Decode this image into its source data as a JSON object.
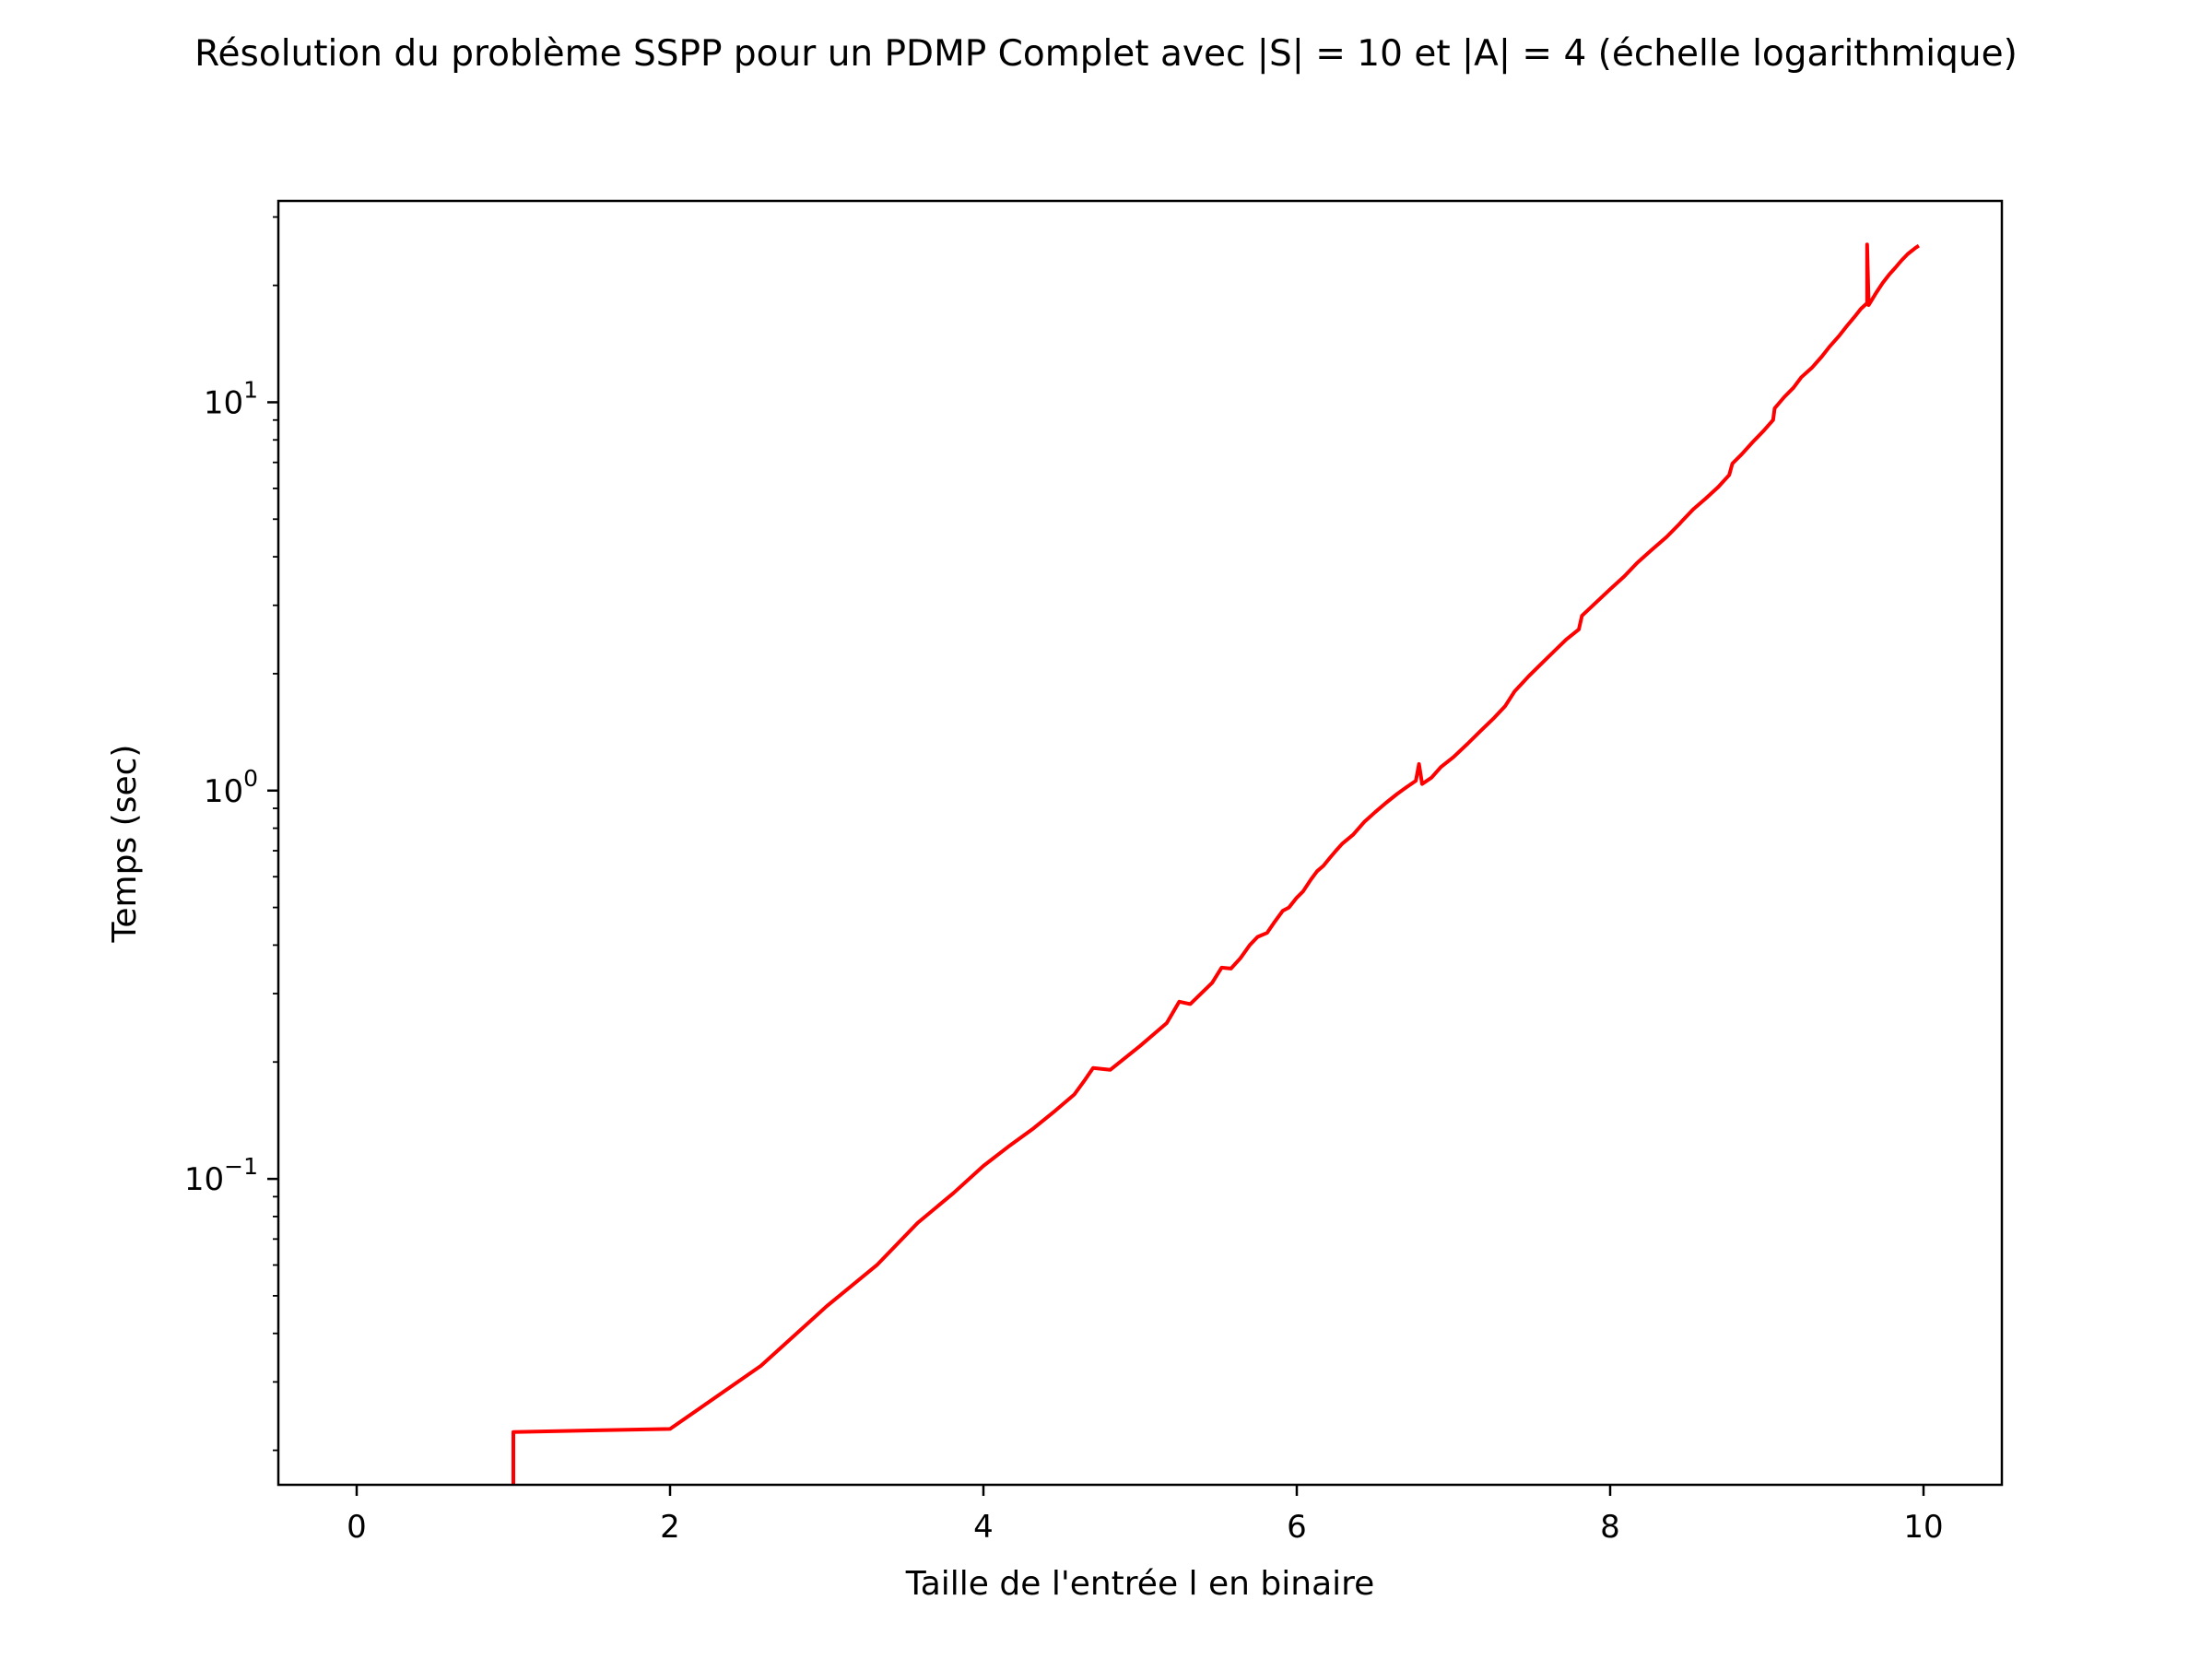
{
  "chart_data": {
    "type": "line",
    "title": "Résolution du problème SSPP pour un PDMP Complet avec |S| = 10 et |A| = 4 (échelle logarithmique)",
    "xlabel": "Taille de l'entrée l en binaire",
    "ylabel": "Temps (sec)",
    "xlim": [
      -0.5,
      10.5
    ],
    "ylim": [
      0.0163,
      33.0
    ],
    "yscale": "log",
    "grid": false,
    "x_ticks": [
      0,
      2,
      4,
      6,
      8,
      10
    ],
    "x_tick_labels": [
      "0",
      "2",
      "4",
      "6",
      "8",
      "10"
    ],
    "y_ticks": [
      0.1,
      1,
      10
    ],
    "y_tick_labels": [
      {
        "base": "10",
        "exp": "−1"
      },
      {
        "base": "10",
        "exp": "0"
      },
      {
        "base": "10",
        "exp": "1"
      }
    ],
    "series": [
      {
        "color": "#ff0000",
        "points": [
          [
            1.0,
            0.0163
          ],
          [
            1.0,
            0.0223
          ],
          [
            2.0,
            0.0227
          ],
          [
            2.58,
            0.033
          ],
          [
            3.0,
            0.047
          ],
          [
            3.32,
            0.06
          ],
          [
            3.58,
            0.077
          ],
          [
            3.81,
            0.092
          ],
          [
            4.0,
            0.108
          ],
          [
            4.17,
            0.122
          ],
          [
            4.32,
            0.135
          ],
          [
            4.46,
            0.15
          ],
          [
            4.58,
            0.165
          ],
          [
            4.64,
            0.178
          ],
          [
            4.7,
            0.193
          ],
          [
            4.81,
            0.191
          ],
          [
            5.0,
            0.22
          ],
          [
            5.17,
            0.252
          ],
          [
            5.25,
            0.286
          ],
          [
            5.32,
            0.282
          ],
          [
            5.46,
            0.32
          ],
          [
            5.52,
            0.35
          ],
          [
            5.58,
            0.348
          ],
          [
            5.64,
            0.37
          ],
          [
            5.7,
            0.4
          ],
          [
            5.75,
            0.42
          ],
          [
            5.81,
            0.43
          ],
          [
            5.86,
            0.46
          ],
          [
            5.91,
            0.49
          ],
          [
            5.95,
            0.5
          ],
          [
            6.0,
            0.53
          ],
          [
            6.04,
            0.55
          ],
          [
            6.09,
            0.59
          ],
          [
            6.13,
            0.62
          ],
          [
            6.17,
            0.64
          ],
          [
            6.21,
            0.67
          ],
          [
            6.25,
            0.7
          ],
          [
            6.29,
            0.73
          ],
          [
            6.36,
            0.77
          ],
          [
            6.43,
            0.83
          ],
          [
            6.5,
            0.88
          ],
          [
            6.57,
            0.93
          ],
          [
            6.64,
            0.98
          ],
          [
            6.7,
            1.02
          ],
          [
            6.76,
            1.06
          ],
          [
            6.78,
            1.17
          ],
          [
            6.8,
            1.04
          ],
          [
            6.86,
            1.08
          ],
          [
            6.92,
            1.15
          ],
          [
            7.0,
            1.22
          ],
          [
            7.09,
            1.32
          ],
          [
            7.17,
            1.42
          ],
          [
            7.26,
            1.54
          ],
          [
            7.33,
            1.65
          ],
          [
            7.39,
            1.8
          ],
          [
            7.48,
            1.97
          ],
          [
            7.56,
            2.12
          ],
          [
            7.64,
            2.28
          ],
          [
            7.72,
            2.45
          ],
          [
            7.8,
            2.6
          ],
          [
            7.82,
            2.82
          ],
          [
            7.91,
            3.05
          ],
          [
            8.0,
            3.3
          ],
          [
            8.09,
            3.56
          ],
          [
            8.17,
            3.85
          ],
          [
            8.26,
            4.15
          ],
          [
            8.36,
            4.5
          ],
          [
            8.44,
            4.85
          ],
          [
            8.46,
            4.95
          ],
          [
            8.53,
            5.3
          ],
          [
            8.61,
            5.65
          ],
          [
            8.69,
            6.05
          ],
          [
            8.76,
            6.5
          ],
          [
            8.78,
            6.95
          ],
          [
            8.84,
            7.35
          ],
          [
            8.91,
            7.9
          ],
          [
            8.98,
            8.45
          ],
          [
            9.04,
            9.0
          ],
          [
            9.05,
            9.65
          ],
          [
            9.11,
            10.3
          ],
          [
            9.17,
            10.9
          ],
          [
            9.22,
            11.6
          ],
          [
            9.29,
            12.3
          ],
          [
            9.35,
            13.1
          ],
          [
            9.4,
            13.9
          ],
          [
            9.46,
            14.8
          ],
          [
            9.51,
            15.7
          ],
          [
            9.56,
            16.6
          ],
          [
            9.6,
            17.4
          ],
          [
            9.64,
            18.0
          ],
          [
            9.64,
            25.5
          ],
          [
            9.65,
            17.8
          ],
          [
            9.7,
            19.2
          ],
          [
            9.74,
            20.3
          ],
          [
            9.78,
            21.3
          ],
          [
            9.82,
            22.2
          ],
          [
            9.86,
            23.2
          ],
          [
            9.9,
            24.1
          ],
          [
            9.95,
            25.0
          ],
          [
            9.97,
            25.3
          ]
        ]
      }
    ]
  }
}
